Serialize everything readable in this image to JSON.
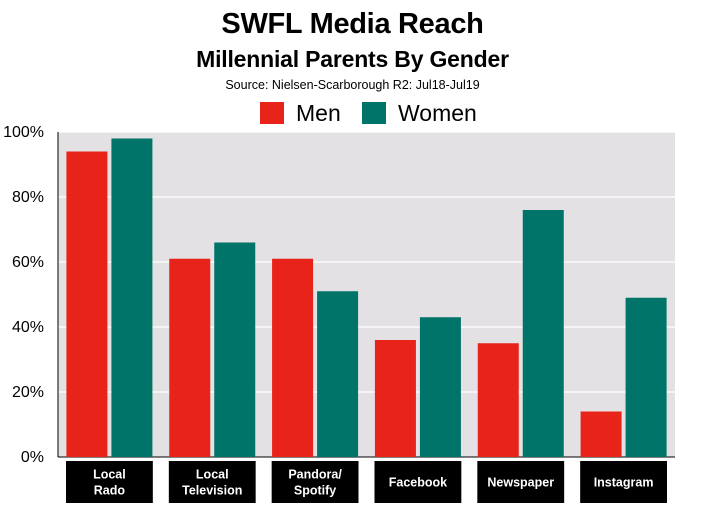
{
  "chart_data": {
    "type": "bar",
    "title": "SWFL Media Reach",
    "subtitle": "Millennial Parents By Gender",
    "source": "Source: Nielsen-Scarborough R2: Jul18-Jul19",
    "categories": [
      [
        "Local",
        "Rado"
      ],
      [
        "Local",
        "Television"
      ],
      [
        "Pandora/",
        "Spotify"
      ],
      [
        "Facebook"
      ],
      [
        "Newspaper"
      ],
      [
        "Instagram"
      ]
    ],
    "series": [
      {
        "name": "Men",
        "color": "#e8231a",
        "values": [
          94,
          61,
          61,
          36,
          35,
          14
        ]
      },
      {
        "name": "Women",
        "color": "#007468",
        "values": [
          98,
          66,
          51,
          43,
          76,
          49
        ]
      }
    ],
    "ylim": [
      0,
      100
    ],
    "yticks": [
      "0%",
      "20%",
      "40%",
      "60%",
      "80%",
      "100%"
    ],
    "grid": true,
    "legend_position": "top"
  }
}
